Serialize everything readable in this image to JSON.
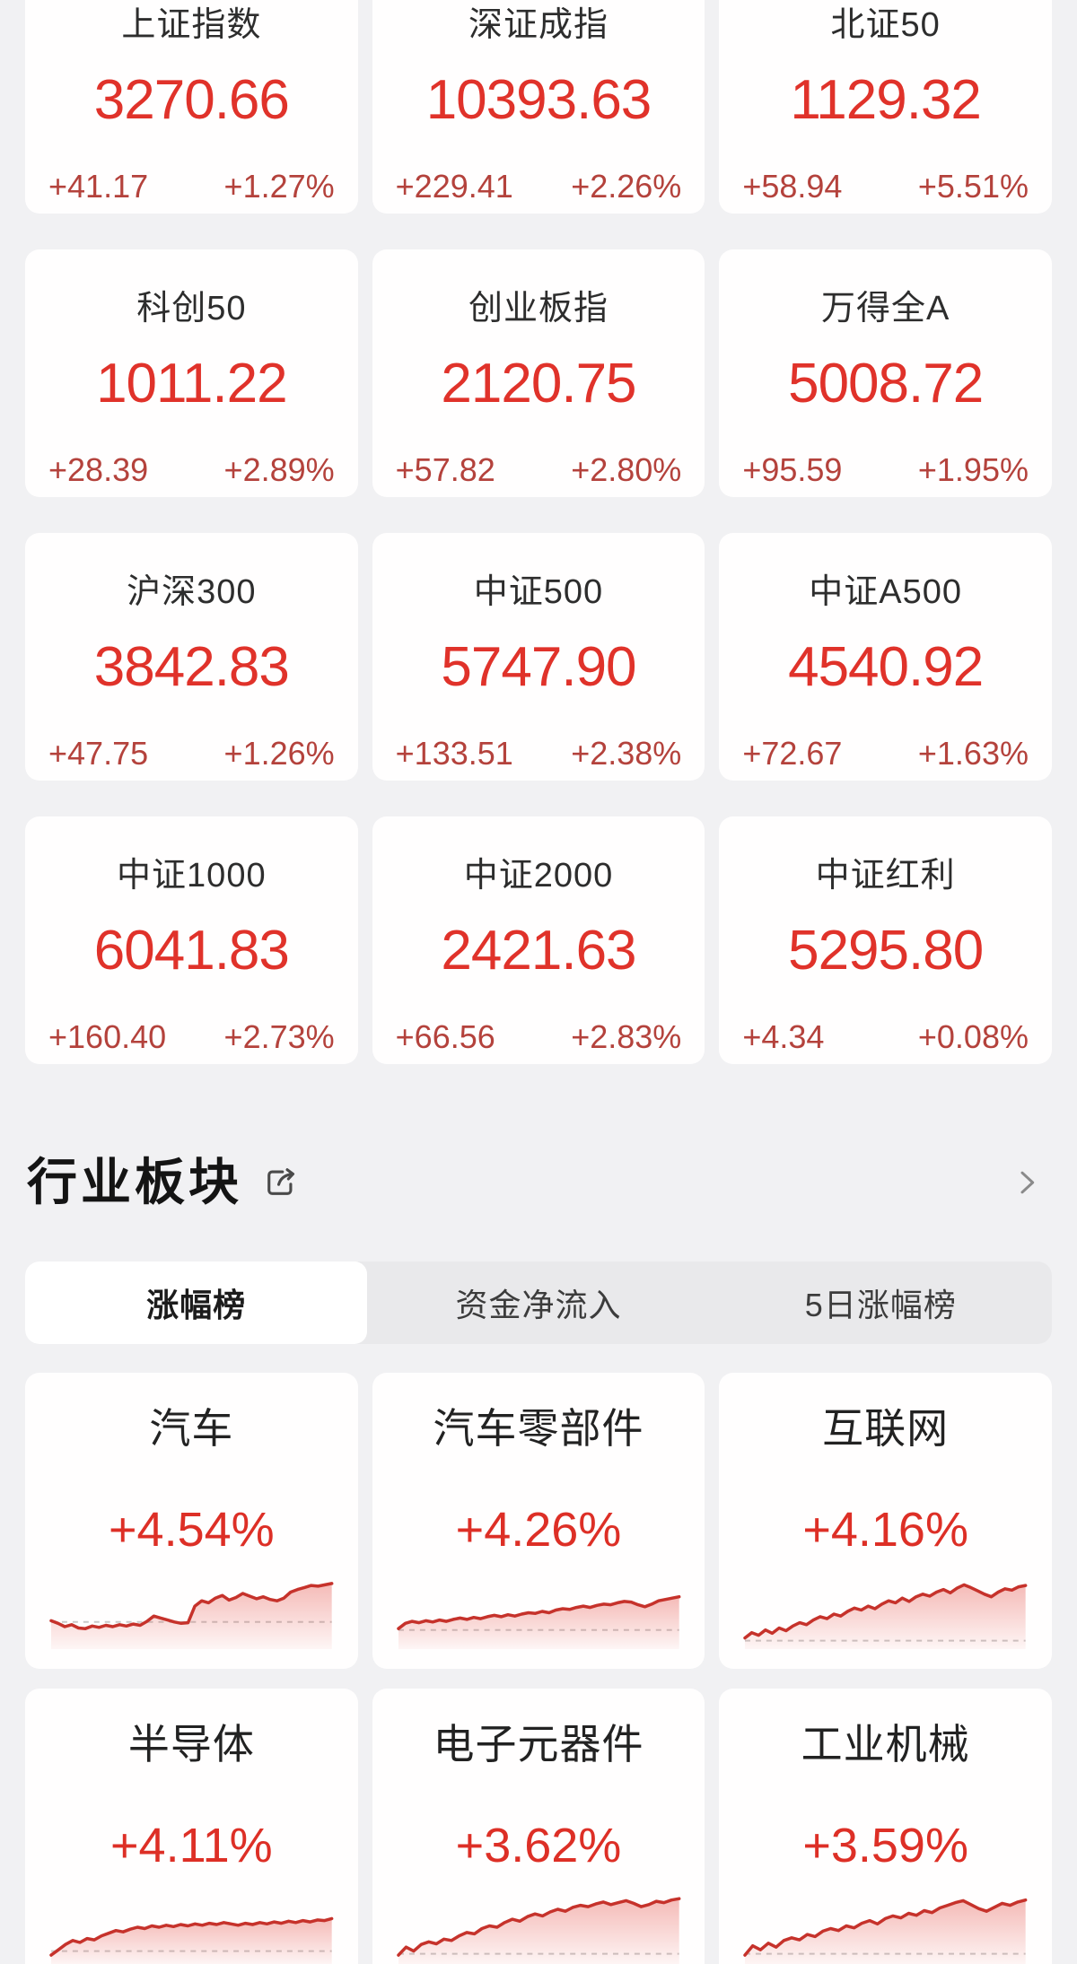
{
  "indices": [
    {
      "name": "上证指数",
      "value": "3270.66",
      "change": "+41.17",
      "change_pct": "+1.27%"
    },
    {
      "name": "深证成指",
      "value": "10393.63",
      "change": "+229.41",
      "change_pct": "+2.26%"
    },
    {
      "name": "北证50",
      "value": "1129.32",
      "change": "+58.94",
      "change_pct": "+5.51%"
    },
    {
      "name": "科创50",
      "value": "1011.22",
      "change": "+28.39",
      "change_pct": "+2.89%"
    },
    {
      "name": "创业板指",
      "value": "2120.75",
      "change": "+57.82",
      "change_pct": "+2.80%"
    },
    {
      "name": "万得全A",
      "value": "5008.72",
      "change": "+95.59",
      "change_pct": "+1.95%"
    },
    {
      "name": "沪深300",
      "value": "3842.83",
      "change": "+47.75",
      "change_pct": "+1.26%"
    },
    {
      "name": "中证500",
      "value": "5747.90",
      "change": "+133.51",
      "change_pct": "+2.38%"
    },
    {
      "name": "中证A500",
      "value": "4540.92",
      "change": "+72.67",
      "change_pct": "+1.63%"
    },
    {
      "name": "中证1000",
      "value": "6041.83",
      "change": "+160.40",
      "change_pct": "+2.73%"
    },
    {
      "name": "中证2000",
      "value": "2421.63",
      "change": "+66.56",
      "change_pct": "+2.83%"
    },
    {
      "name": "中证红利",
      "value": "5295.80",
      "change": "+4.34",
      "change_pct": "+0.08%"
    }
  ],
  "sector_section": {
    "title": "行业板块",
    "tabs": [
      "涨幅榜",
      "资金净流入",
      "5日涨幅榜"
    ],
    "active_tab": "涨幅榜"
  },
  "sectors": {
    "cards": [
      {
        "name": "汽车",
        "change_pct": "+4.54%",
        "baseline": 34,
        "sparkline": [
          36,
          32,
          27,
          30,
          25,
          24,
          28,
          26,
          29,
          27,
          30,
          28,
          31,
          29,
          35,
          43,
          40,
          37,
          34,
          32,
          33,
          58,
          66,
          63,
          70,
          74,
          67,
          71,
          77,
          73,
          69,
          72,
          68,
          66,
          70,
          79,
          83,
          86,
          89,
          88,
          90,
          92
        ]
      },
      {
        "name": "汽车零部件",
        "change_pct": "+4.26%",
        "baseline": 22,
        "sparkline": [
          24,
          32,
          35,
          33,
          36,
          34,
          37,
          35,
          38,
          40,
          38,
          41,
          39,
          42,
          44,
          42,
          45,
          43,
          46,
          48,
          47,
          50,
          48,
          52,
          54,
          53,
          56,
          58,
          56,
          59,
          61,
          60,
          63,
          65,
          64,
          60,
          57,
          61,
          66,
          68,
          70,
          72
        ]
      },
      {
        "name": "互联网",
        "change_pct": "+4.16%",
        "baseline": 6,
        "sparkline": [
          10,
          18,
          14,
          22,
          17,
          25,
          21,
          28,
          33,
          30,
          37,
          42,
          39,
          46,
          43,
          50,
          55,
          52,
          58,
          54,
          61,
          66,
          63,
          70,
          65,
          72,
          76,
          73,
          79,
          83,
          78,
          85,
          90,
          86,
          81,
          76,
          72,
          79,
          84,
          82,
          87,
          89
        ]
      },
      {
        "name": "半导体",
        "change_pct": "+4.11%",
        "baseline": 14,
        "sparkline": [
          8,
          16,
          24,
          30,
          27,
          33,
          31,
          37,
          41,
          45,
          43,
          47,
          50,
          48,
          52,
          50,
          53,
          51,
          54,
          52,
          55,
          53,
          56,
          54,
          57,
          55,
          53,
          56,
          54,
          57,
          55,
          58,
          56,
          59,
          57,
          60,
          58,
          61,
          60,
          63
        ]
      },
      {
        "name": "电子元器件",
        "change_pct": "+3.62%",
        "baseline": 10,
        "sparkline": [
          8,
          20,
          14,
          24,
          28,
          25,
          32,
          30,
          37,
          42,
          40,
          48,
          52,
          50,
          57,
          62,
          59,
          66,
          70,
          67,
          73,
          77,
          74,
          80,
          83,
          81,
          85,
          88,
          84,
          87,
          90,
          86,
          81,
          84,
          89,
          87,
          91,
          93
        ]
      },
      {
        "name": "工业机械",
        "change_pct": "+3.59%",
        "baseline": 10,
        "sparkline": [
          8,
          22,
          16,
          26,
          20,
          30,
          34,
          31,
          39,
          36,
          44,
          48,
          45,
          52,
          49,
          56,
          60,
          55,
          63,
          67,
          64,
          71,
          68,
          75,
          72,
          79,
          83,
          87,
          90,
          84,
          78,
          74,
          80,
          86,
          83,
          88,
          91
        ]
      }
    ]
  },
  "icons": {
    "share": "share-icon",
    "chevron_right": "chevron-right-icon"
  },
  "colors": {
    "page_bg": "#f1f1f3",
    "card_bg": "#ffffff",
    "index_value_red": "#e0322a",
    "index_change_red": "#b4423c",
    "sector_change_red": "#dd2f26",
    "spark_line_red": "#c6322b",
    "spark_fill_red": "#e5554d",
    "baseline_gray": "#c9c9c9"
  }
}
